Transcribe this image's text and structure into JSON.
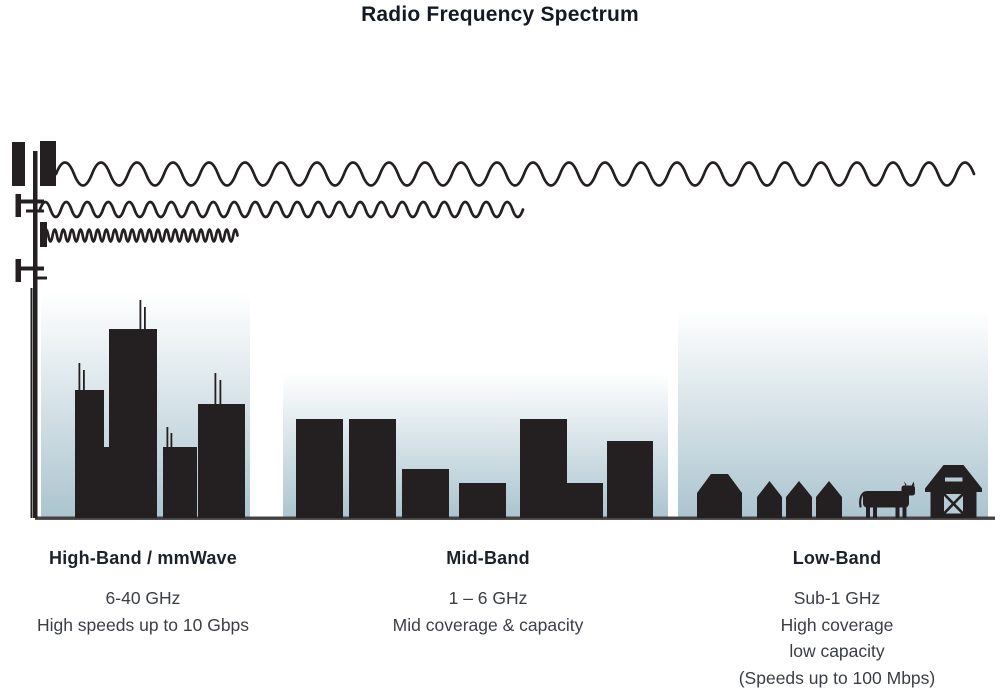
{
  "title": "Radio Frequency Spectrum",
  "colors": {
    "ink": "#242021",
    "ground": "#454142",
    "sky_top": "#ffffff",
    "sky_mid": "#e8eff2",
    "sky_bottom": "#abc4cf",
    "heading_text": "#1d212b",
    "body_text": "#3b3e45"
  },
  "tower": {
    "icon": "cell-tower-icon"
  },
  "waves": [
    {
      "icon": "long-wavelength-wave-icon",
      "period": 36,
      "amplitude": 11.5
    },
    {
      "icon": "medium-wavelength-wave-icon",
      "period": 21,
      "amplitude": 7.5
    },
    {
      "icon": "short-wavelength-wave-icon",
      "period": 8.6,
      "amplitude": 6
    }
  ],
  "bands": [
    {
      "id": "high",
      "heading": "High-Band / mmWave",
      "lines": [
        "6-40 GHz",
        "High speeds up to 10 Gbps"
      ],
      "scene": "city-skyline"
    },
    {
      "id": "mid",
      "heading": "Mid-Band",
      "lines": [
        "1 – 6 GHz",
        "Mid coverage & capacity"
      ],
      "scene": "town-buildings"
    },
    {
      "id": "low",
      "heading": "Low-Band",
      "lines": [
        "Sub-1 GHz",
        "High coverage",
        "low capacity",
        "(Speeds up to 100 Mbps)"
      ],
      "scene": "farm-with-houses-cow-barn"
    }
  ]
}
